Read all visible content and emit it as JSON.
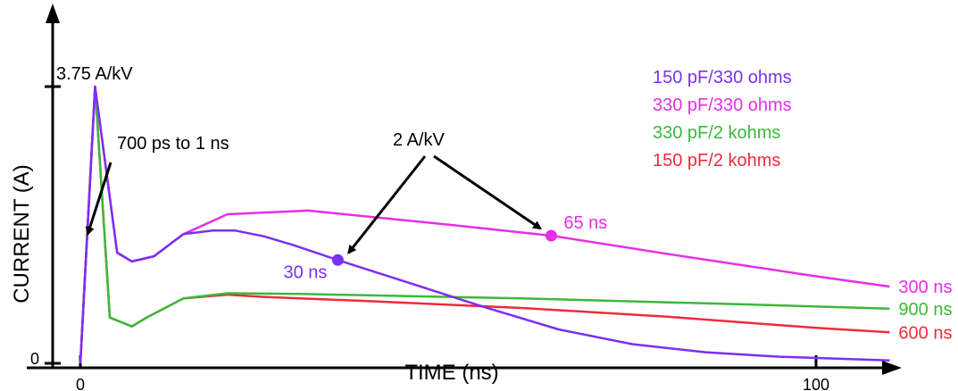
{
  "chart_data": {
    "type": "line",
    "xlabel": "TIME (ns)",
    "ylabel": "CURRENT (A)",
    "xlim": [
      0,
      110
    ],
    "ylim": [
      0,
      3.9
    ],
    "x_ticks": [
      {
        "value": 0,
        "label": "0"
      },
      {
        "value": 100,
        "label": "100"
      }
    ],
    "y_ticks": [
      {
        "value": 0,
        "label": "0"
      },
      {
        "value": 3.75,
        "label": "3.75 A/kV"
      }
    ],
    "legend_position": "top-right",
    "legend": [
      {
        "label": "150 pF/330 ohms",
        "color": "#7b2ff2"
      },
      {
        "label": "330 pF/330 ohms",
        "color": "#e62ee6"
      },
      {
        "label": "330 pF/2 kohms",
        "color": "#3cb83c"
      },
      {
        "label": "150 pF/2 kohms",
        "color": "#ee2b3b"
      }
    ],
    "series": [
      {
        "color": "#ee2b3b",
        "end_label": "600 ns",
        "points": [
          [
            0,
            0
          ],
          [
            2,
            3.75
          ],
          [
            4,
            0.62
          ],
          [
            7,
            0.5
          ],
          [
            9,
            0.62
          ],
          [
            14,
            0.88
          ],
          [
            20,
            0.93
          ],
          [
            25,
            0.9
          ],
          [
            40,
            0.84
          ],
          [
            60,
            0.75
          ],
          [
            80,
            0.63
          ],
          [
            100,
            0.48
          ],
          [
            110,
            0.42
          ]
        ]
      },
      {
        "color": "#3cb83c",
        "end_label": "900 ns",
        "points": [
          [
            0,
            0
          ],
          [
            2,
            3.75
          ],
          [
            4,
            0.62
          ],
          [
            7,
            0.5
          ],
          [
            9,
            0.62
          ],
          [
            14,
            0.88
          ],
          [
            20,
            0.95
          ],
          [
            30,
            0.94
          ],
          [
            60,
            0.88
          ],
          [
            90,
            0.8
          ],
          [
            110,
            0.74
          ]
        ]
      },
      {
        "color": "#e62ee6",
        "end_label": "300 ns",
        "points": [
          [
            0,
            0
          ],
          [
            2,
            3.75
          ],
          [
            5,
            1.5
          ],
          [
            7,
            1.38
          ],
          [
            10,
            1.45
          ],
          [
            14,
            1.75
          ],
          [
            20,
            2.02
          ],
          [
            31,
            2.07
          ],
          [
            50,
            1.88
          ],
          [
            64,
            1.73
          ],
          [
            80,
            1.48
          ],
          [
            100,
            1.18
          ],
          [
            110,
            1.04
          ]
        ]
      },
      {
        "color": "#7b2ff2",
        "end_label": "",
        "points": [
          [
            0,
            0
          ],
          [
            2,
            3.75
          ],
          [
            5,
            1.5
          ],
          [
            7,
            1.38
          ],
          [
            10,
            1.45
          ],
          [
            14,
            1.75
          ],
          [
            18,
            1.8
          ],
          [
            21,
            1.8
          ],
          [
            25,
            1.72
          ],
          [
            29,
            1.6
          ],
          [
            35,
            1.4
          ],
          [
            45,
            1.08
          ],
          [
            55,
            0.76
          ],
          [
            65,
            0.46
          ],
          [
            75,
            0.26
          ],
          [
            85,
            0.15
          ],
          [
            95,
            0.09
          ],
          [
            110,
            0.04
          ]
        ]
      }
    ],
    "annotations": [
      {
        "text": "700 ps to 1 ns",
        "color": "#000000"
      },
      {
        "text": "2 A/kV",
        "color": "#000000"
      }
    ],
    "markers": [
      {
        "x": 35,
        "y": 1.4,
        "label": "30 ns",
        "color": "#7b2ff2"
      },
      {
        "x": 64,
        "y": 1.73,
        "label": "65 ns",
        "color": "#e62ee6"
      }
    ]
  }
}
